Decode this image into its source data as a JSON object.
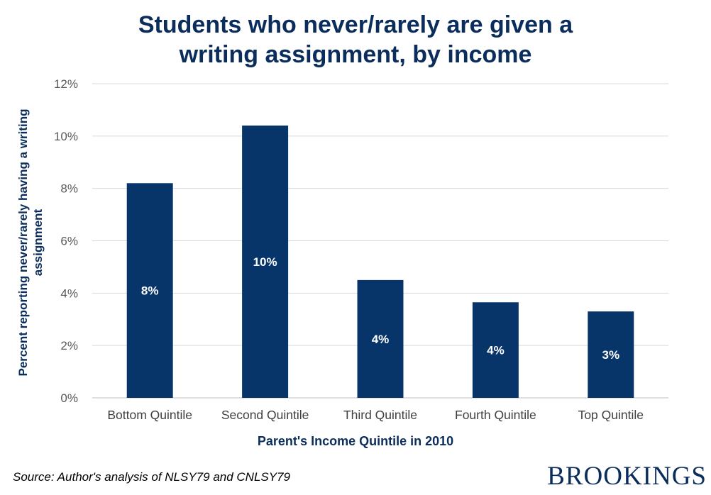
{
  "chart_data": {
    "type": "bar",
    "title_lines": [
      "Students who never/rarely are given a",
      "writing assignment, by income"
    ],
    "xlabel": "Parent's Income Quintile in 2010",
    "ylabel_lines": [
      "Percent reporting never/rarely having a writing",
      "assignment"
    ],
    "categories": [
      "Bottom Quintile",
      "Second Quintile",
      "Third Quintile",
      "Fourth Quintile",
      "Top Quintile"
    ],
    "values": [
      8.2,
      10.4,
      4.5,
      3.65,
      3.3
    ],
    "data_labels": [
      "8%",
      "10%",
      "4%",
      "4%",
      "3%"
    ],
    "ylim": [
      0,
      12
    ],
    "yticks": [
      0,
      2,
      4,
      6,
      8,
      10,
      12
    ],
    "ytick_labels": [
      "0%",
      "2%",
      "4%",
      "6%",
      "8%",
      "10%",
      "12%"
    ],
    "grid": true,
    "colors": {
      "bar": "#07356a",
      "label": "#ffffff",
      "grid": "#d9d9d9"
    }
  },
  "source": "Source: Author's analysis of NLSY79 and CNLSY79",
  "logo_text": "BROOKINGS"
}
